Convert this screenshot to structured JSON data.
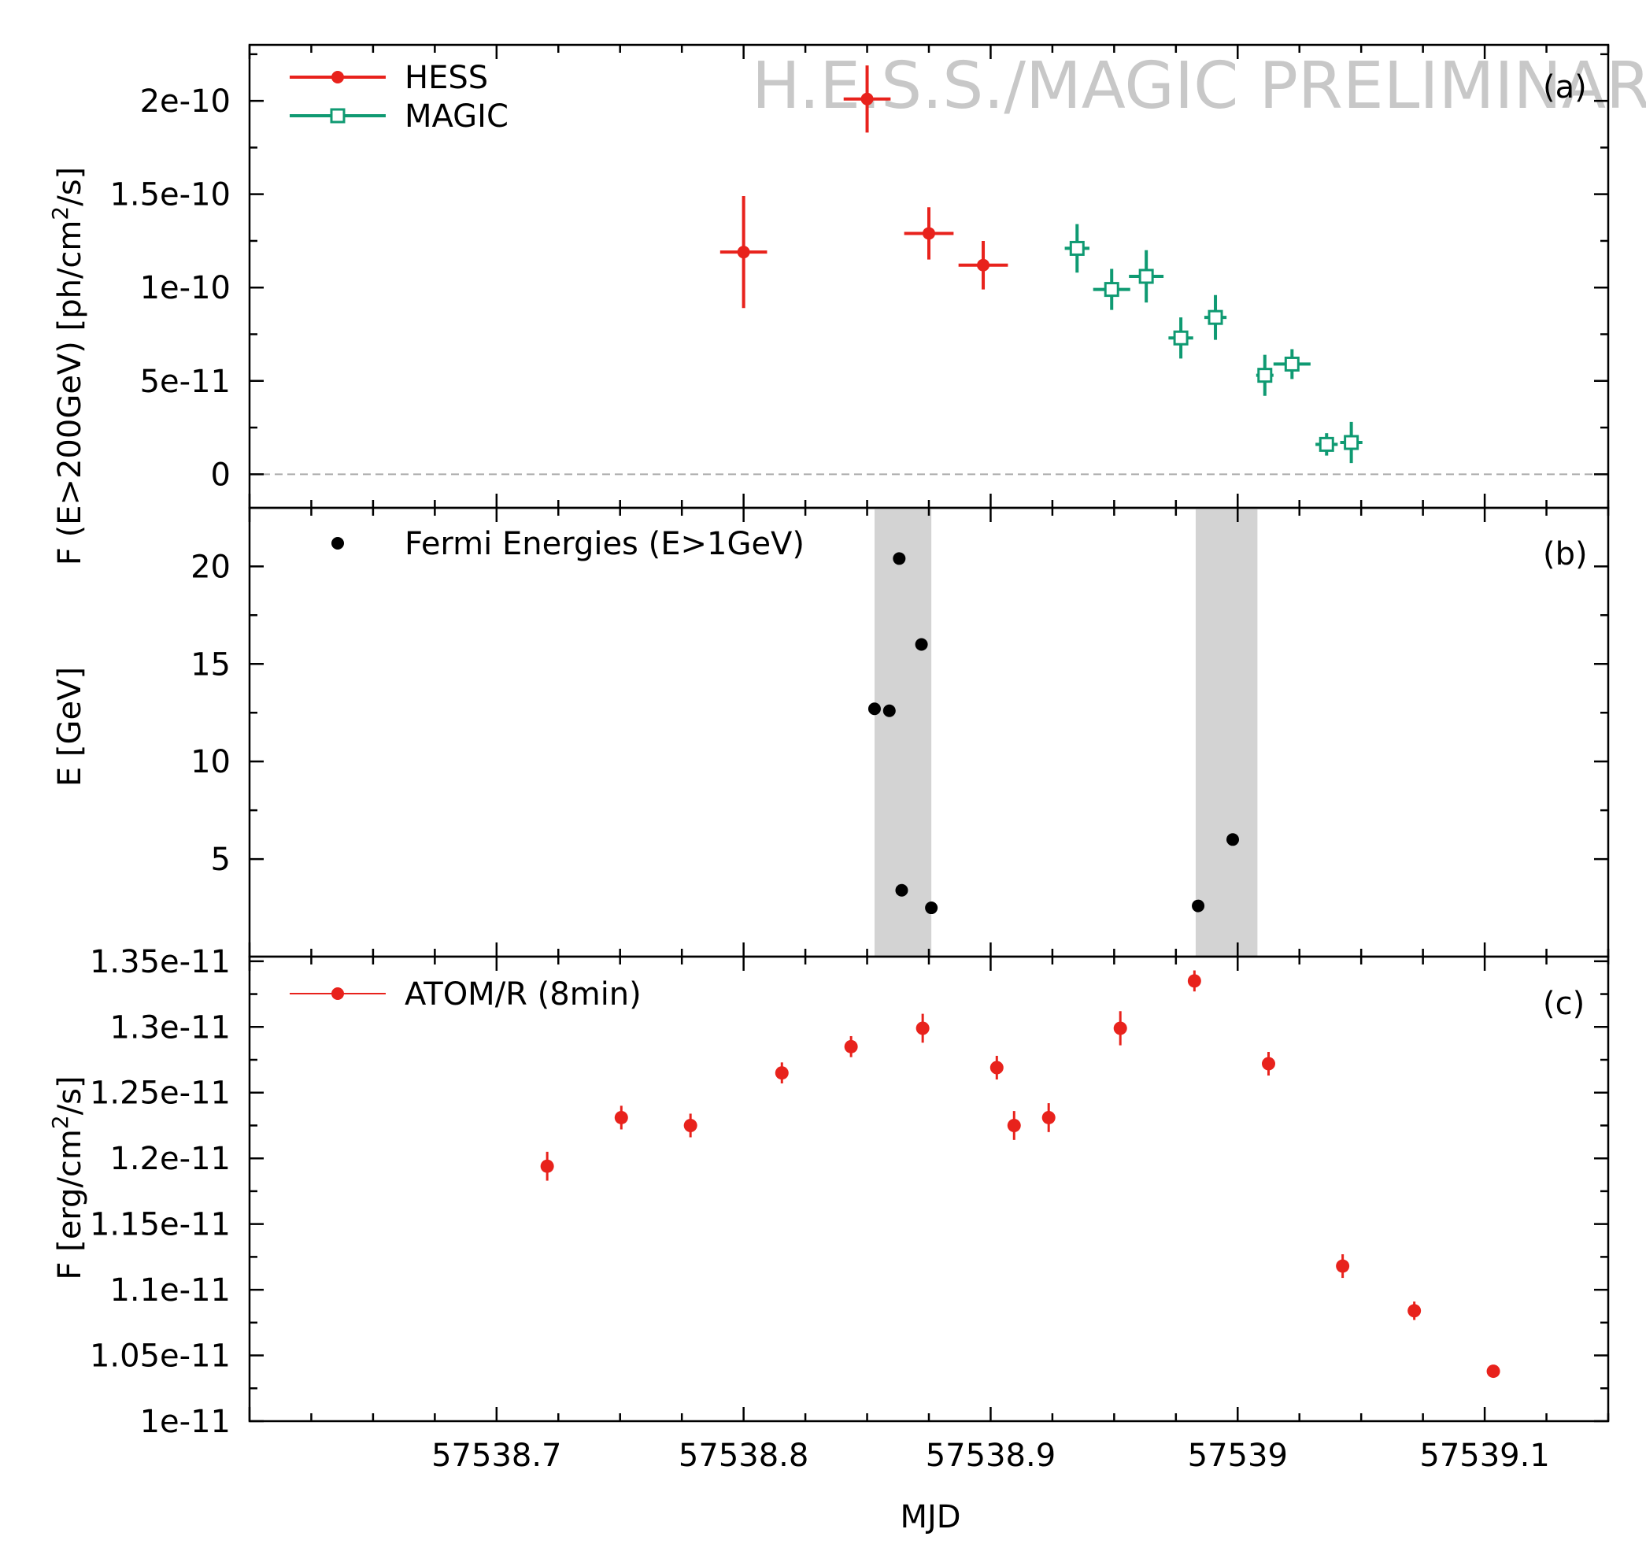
{
  "chart_data": [
    {
      "id": "a",
      "type": "scatter",
      "panel_tag": "(a)",
      "ylabel": "F (E>200GeV) [ph/cm²/s]",
      "ylabel_parts": {
        "main": "F (E>200GeV) [ph/cm",
        "sup": "2",
        "tail": "/s]"
      },
      "ylim": [
        -1.8e-11,
        2.3e-10
      ],
      "yticks": [
        {
          "value": 0,
          "label": "0"
        },
        {
          "value": 5e-11,
          "label": "5e-11"
        },
        {
          "value": 1e-10,
          "label": "1e-10"
        },
        {
          "value": 1.5e-10,
          "label": "1.5e-10"
        },
        {
          "value": 2e-10,
          "label": "2e-10"
        }
      ],
      "watermark": "H.E.S.S./MAGIC PRELIMINARY",
      "zero_line": true,
      "legend_position": "top-left",
      "series": [
        {
          "name": "HESS",
          "color": "#e8221c",
          "marker": "filled-circle",
          "points": [
            {
              "x": 57538.8,
              "y": 1.19e-10,
              "xerr": 0.0095,
              "yerr": 3e-11
            },
            {
              "x": 57538.85,
              "y": 2.01e-10,
              "xerr": 0.0095,
              "yerr": 1.8e-11
            },
            {
              "x": 57538.875,
              "y": 1.29e-10,
              "xerr": 0.01,
              "yerr": 1.4e-11
            },
            {
              "x": 57538.897,
              "y": 1.12e-10,
              "xerr": 0.01,
              "yerr": 1.3e-11
            }
          ]
        },
        {
          "name": "MAGIC",
          "color": "#0f9a72",
          "marker": "open-square",
          "points": [
            {
              "x": 57538.935,
              "y": 1.21e-10,
              "xerr": 0.005,
              "yerr": 1.3e-11
            },
            {
              "x": 57538.949,
              "y": 9.9e-11,
              "xerr": 0.0075,
              "yerr": 1.1e-11
            },
            {
              "x": 57538.963,
              "y": 1.06e-10,
              "xerr": 0.007,
              "yerr": 1.4e-11
            },
            {
              "x": 57538.977,
              "y": 7.3e-11,
              "xerr": 0.005,
              "yerr": 1.1e-11
            },
            {
              "x": 57538.991,
              "y": 8.4e-11,
              "xerr": 0.0045,
              "yerr": 1.2e-11
            },
            {
              "x": 57539.011,
              "y": 5.3e-11,
              "xerr": 0.0035,
              "yerr": 1.1e-11
            },
            {
              "x": 57539.022,
              "y": 5.9e-11,
              "xerr": 0.0075,
              "yerr": 8e-12
            },
            {
              "x": 57539.036,
              "y": 1.6e-11,
              "xerr": 0.0045,
              "yerr": 6e-12
            },
            {
              "x": 57539.046,
              "y": 1.7e-11,
              "xerr": 0.0045,
              "yerr": 1.1e-11
            }
          ]
        }
      ]
    },
    {
      "id": "b",
      "type": "scatter",
      "panel_tag": "(b)",
      "ylabel": "E [GeV]",
      "ylim": [
        0,
        23
      ],
      "yticks": [
        {
          "value": 5,
          "label": "5"
        },
        {
          "value": 10,
          "label": "10"
        },
        {
          "value": 15,
          "label": "15"
        },
        {
          "value": 20,
          "label": "20"
        }
      ],
      "legend_position": "top-left",
      "shaded_intervals": [
        {
          "x0": 57538.853,
          "x1": 57538.876,
          "color": "#d3d3d3"
        },
        {
          "x0": 57538.983,
          "x1": 57539.008,
          "color": "#d3d3d3"
        }
      ],
      "series": [
        {
          "name": "Fermi Energies (E>1GeV)",
          "color": "#000000",
          "marker": "filled-circle",
          "points": [
            {
              "x": 57538.853,
              "y": 12.7
            },
            {
              "x": 57538.859,
              "y": 12.6
            },
            {
              "x": 57538.863,
              "y": 20.4
            },
            {
              "x": 57538.864,
              "y": 3.4
            },
            {
              "x": 57538.872,
              "y": 16.0
            },
            {
              "x": 57538.876,
              "y": 2.5
            },
            {
              "x": 57538.984,
              "y": 2.6
            },
            {
              "x": 57538.998,
              "y": 6.0
            }
          ]
        }
      ]
    },
    {
      "id": "c",
      "type": "scatter",
      "panel_tag": "(c)",
      "ylabel": "F [erg/cm²/s]",
      "ylabel_parts": {
        "main": "F [erg/cm",
        "sup": "2",
        "tail": "/s]"
      },
      "ylim": [
        1e-11,
        1.3535e-11
      ],
      "yticks": [
        {
          "value": 1e-11,
          "label": "1e-11"
        },
        {
          "value": 1.05e-11,
          "label": "1.05e-11"
        },
        {
          "value": 1.1e-11,
          "label": "1.1e-11"
        },
        {
          "value": 1.15e-11,
          "label": "1.15e-11"
        },
        {
          "value": 1.2e-11,
          "label": "1.2e-11"
        },
        {
          "value": 1.25e-11,
          "label": "1.25e-11"
        },
        {
          "value": 1.3e-11,
          "label": "1.3e-11"
        },
        {
          "value": 1.35e-11,
          "label": "1.35e-11"
        }
      ],
      "xlabel": "MJD",
      "xticks": [
        {
          "value": 57538.7,
          "label": "57538.7"
        },
        {
          "value": 57538.8,
          "label": "57538.8"
        },
        {
          "value": 57538.9,
          "label": "57538.9"
        },
        {
          "value": 57539.0,
          "label": "57539"
        },
        {
          "value": 57539.1,
          "label": "57539.1"
        }
      ],
      "legend_position": "top-left",
      "series": [
        {
          "name": "ATOM/R (8min)",
          "color": "#e8221c",
          "marker": "filled-circle",
          "points": [
            {
              "x": 57538.7205,
              "y": 1.194e-11,
              "yerr": 1.1e-13
            },
            {
              "x": 57538.7505,
              "y": 1.231e-11,
              "yerr": 9e-14
            },
            {
              "x": 57538.7785,
              "y": 1.225e-11,
              "yerr": 9e-14
            },
            {
              "x": 57538.8155,
              "y": 1.265e-11,
              "yerr": 8e-14
            },
            {
              "x": 57538.8435,
              "y": 1.285e-11,
              "yerr": 8e-14
            },
            {
              "x": 57538.8725,
              "y": 1.299e-11,
              "yerr": 1.1e-13
            },
            {
              "x": 57538.9025,
              "y": 1.269e-11,
              "yerr": 9e-14
            },
            {
              "x": 57538.9095,
              "y": 1.225e-11,
              "yerr": 1.1e-13
            },
            {
              "x": 57538.9235,
              "y": 1.231e-11,
              "yerr": 1.1e-13
            },
            {
              "x": 57538.9525,
              "y": 1.299e-11,
              "yerr": 1.3e-13
            },
            {
              "x": 57538.9825,
              "y": 1.335e-11,
              "yerr": 8e-14
            },
            {
              "x": 57539.0125,
              "y": 1.272e-11,
              "yerr": 9e-14
            },
            {
              "x": 57539.0425,
              "y": 1.118e-11,
              "yerr": 9e-14
            },
            {
              "x": 57539.0715,
              "y": 1.084e-11,
              "yerr": 7e-14
            },
            {
              "x": 57539.1035,
              "y": 1.038e-11,
              "yerr": 4e-14
            }
          ]
        }
      ]
    }
  ]
}
